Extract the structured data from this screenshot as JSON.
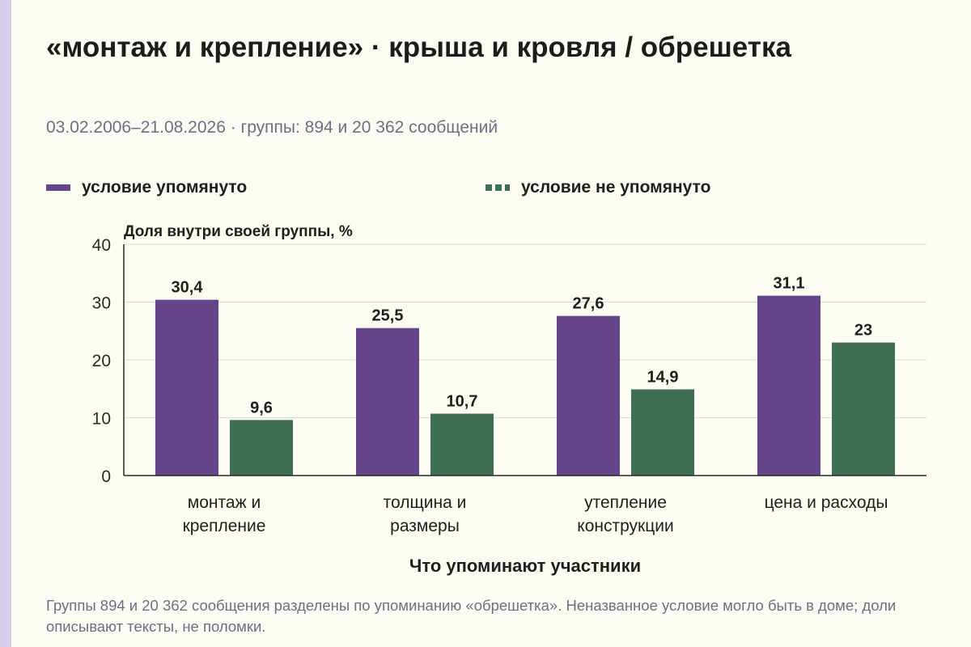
{
  "title": "«монтаж и крепление» · крыша и кровля / обрешетка",
  "subtitle": "03.02.2006–21.08.2026 · группы: 894 и 20 362 сообщений",
  "note": "Группы 894 и 20 362 сообщения разделены по упоминанию «обрешетка». Неназванное условие могло быть в доме; доли описывают тексты, не поломки.",
  "colors": {
    "series1": "#64458a",
    "series2": "#3f6d55",
    "background": "#fdfcf3",
    "accent_strip": "#d9cdef"
  },
  "chart_data": {
    "type": "bar",
    "title": "",
    "ylabel": "Доля внутри своей группы, %",
    "xlabel": "Что упоминают участники",
    "ylim": [
      0,
      40
    ],
    "yticks": [
      0,
      10,
      20,
      30,
      40
    ],
    "grid": true,
    "legend": "top",
    "categories": [
      [
        "монтаж и",
        "крепление"
      ],
      [
        "толщина и",
        "размеры"
      ],
      [
        "утепление",
        "конструкции"
      ],
      [
        "цена и расходы"
      ]
    ],
    "series": [
      {
        "name": "условие упомянуто",
        "color": "#64458a",
        "values": [
          30.4,
          25.5,
          27.6,
          31.1
        ],
        "labels": [
          "30,4",
          "25,5",
          "27,6",
          "31,1"
        ]
      },
      {
        "name": "условие не упомянуто",
        "color": "#3f6d55",
        "values": [
          9.6,
          10.7,
          14.9,
          23
        ],
        "labels": [
          "9,6",
          "10,7",
          "14,9",
          "23"
        ]
      }
    ]
  }
}
